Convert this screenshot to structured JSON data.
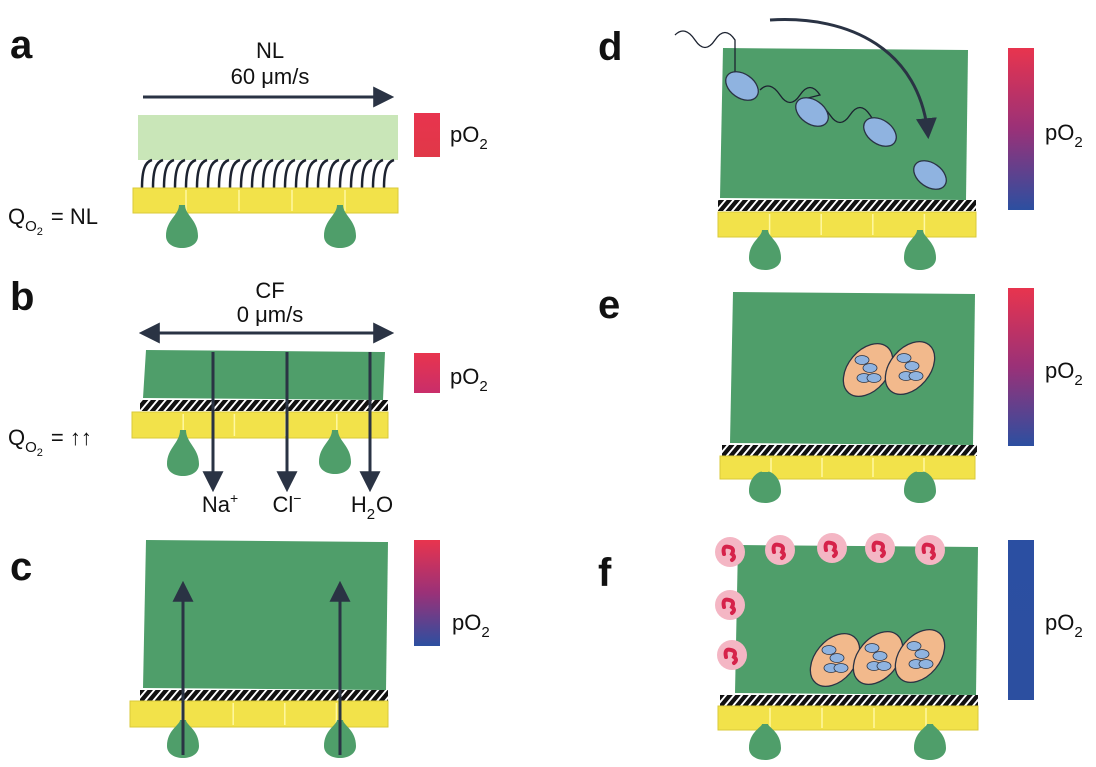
{
  "panels": [
    {
      "letter": "a",
      "flow_label": "NL",
      "flow_speed": "60 μm/s",
      "po2": [
        {
          "text": "pO"
        },
        {
          "sub": "2"
        }
      ],
      "qo2": [
        {
          "text": "Q"
        },
        {
          "sub": "O"
        },
        {
          "subsub": "2"
        },
        {
          "text": "= NL"
        }
      ]
    },
    {
      "letter": "b",
      "flow_label": "CF",
      "flow_speed": "0 μm/s",
      "po2": [
        {
          "text": "pO"
        },
        {
          "sub": "2"
        }
      ],
      "qo2": [
        {
          "text": "Q"
        },
        {
          "sub": "O"
        },
        {
          "subsub": "2"
        },
        {
          "text": "= ↑↑"
        }
      ],
      "ions": [
        [
          {
            "text": "Na"
          },
          {
            "sup": "+"
          }
        ],
        [
          {
            "text": "Cl"
          },
          {
            "sup": "−"
          }
        ],
        [
          {
            "text": "H"
          },
          {
            "sub": "2"
          },
          {
            "text": "O"
          }
        ]
      ]
    },
    {
      "letter": "c",
      "po2": [
        {
          "text": "pO"
        },
        {
          "sub": "2"
        }
      ]
    },
    {
      "letter": "d",
      "po2": [
        {
          "text": "pO"
        },
        {
          "sub": "2"
        }
      ]
    },
    {
      "letter": "e",
      "po2": [
        {
          "text": "pO"
        },
        {
          "sub": "2"
        }
      ]
    },
    {
      "letter": "f",
      "po2": [
        {
          "text": "pO"
        },
        {
          "sub": "2"
        }
      ]
    }
  ]
}
